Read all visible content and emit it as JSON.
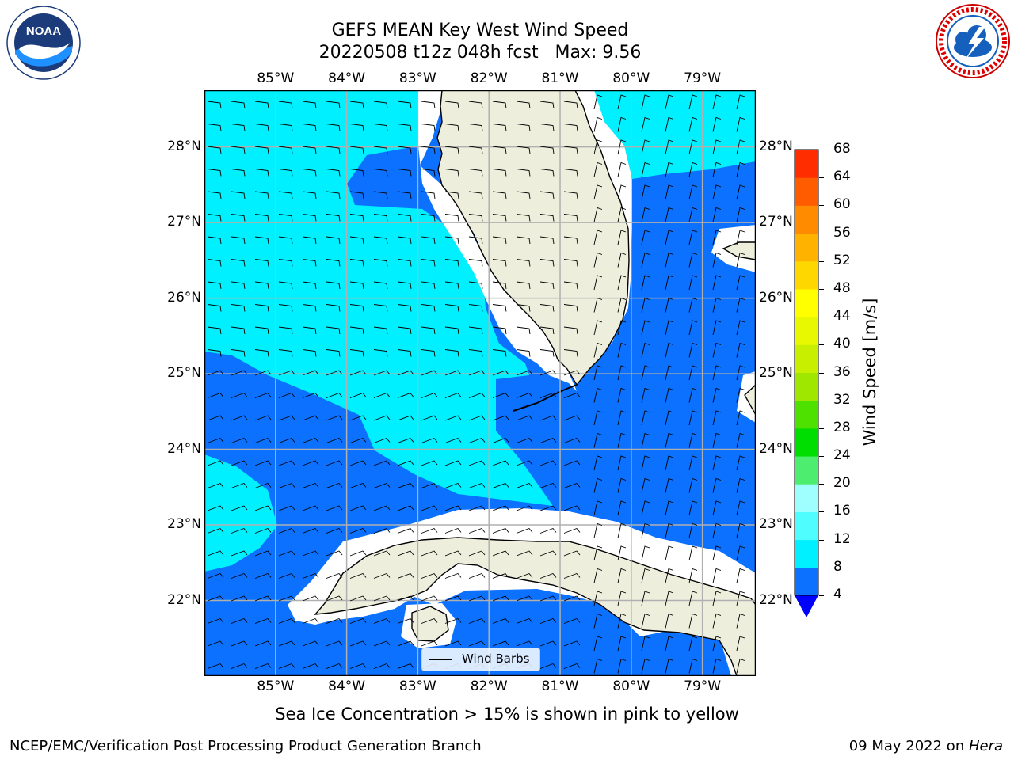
{
  "title": {
    "line1": "GEFS MEAN Key West Wind Speed",
    "line2": "20220508 t12z 048h fcst   Max: 9.56"
  },
  "logos": {
    "left": {
      "icon": "noaa-logo",
      "text": "NOAA"
    },
    "right": {
      "icon": "national-weather-service-logo"
    }
  },
  "map": {
    "lon_labels": [
      "85°W",
      "84°W",
      "83°W",
      "82°W",
      "81°W",
      "80°W",
      "79°W"
    ],
    "lat_labels": [
      "28°N",
      "27°N",
      "26°N",
      "25°N",
      "24°N",
      "23°N",
      "22°N"
    ],
    "extent": {
      "lon": [
        -86.0,
        -78.25
      ],
      "lat": [
        21.0,
        28.75
      ]
    },
    "gridlines": true,
    "legend": {
      "label": "Wind Barbs",
      "placement": "bottom-center"
    }
  },
  "colorbar": {
    "label": "Wind Speed [m/s]",
    "ticks": [
      "4",
      "8",
      "12",
      "16",
      "20",
      "24",
      "28",
      "32",
      "36",
      "40",
      "44",
      "48",
      "52",
      "56",
      "60",
      "64",
      "68"
    ],
    "colors": [
      "#0c71ff",
      "#00f0ff",
      "#4ffdff",
      "#9fffff",
      "#4dee70",
      "#00dd00",
      "#4ee100",
      "#9fe600",
      "#c8ee00",
      "#e8f800",
      "#ffff00",
      "#ffd700",
      "#ffb300",
      "#ff8c00",
      "#ff5c00",
      "#ff2d00",
      "#ff0000"
    ],
    "under_color": "#0000ff"
  },
  "colors": {
    "land": "#eeeedd",
    "wind_4_8": "#0c71ff",
    "wind_8_12": "#00f0ff",
    "grid": "#b0b0b0"
  },
  "subtitle": "Sea Ice Concentration > 15% is shown in pink to yellow",
  "footer": {
    "left": "NCEP/EMC/Verification Post Processing Product Generation Branch",
    "right_date": "09 May 2022 on ",
    "right_host": "Hera"
  }
}
